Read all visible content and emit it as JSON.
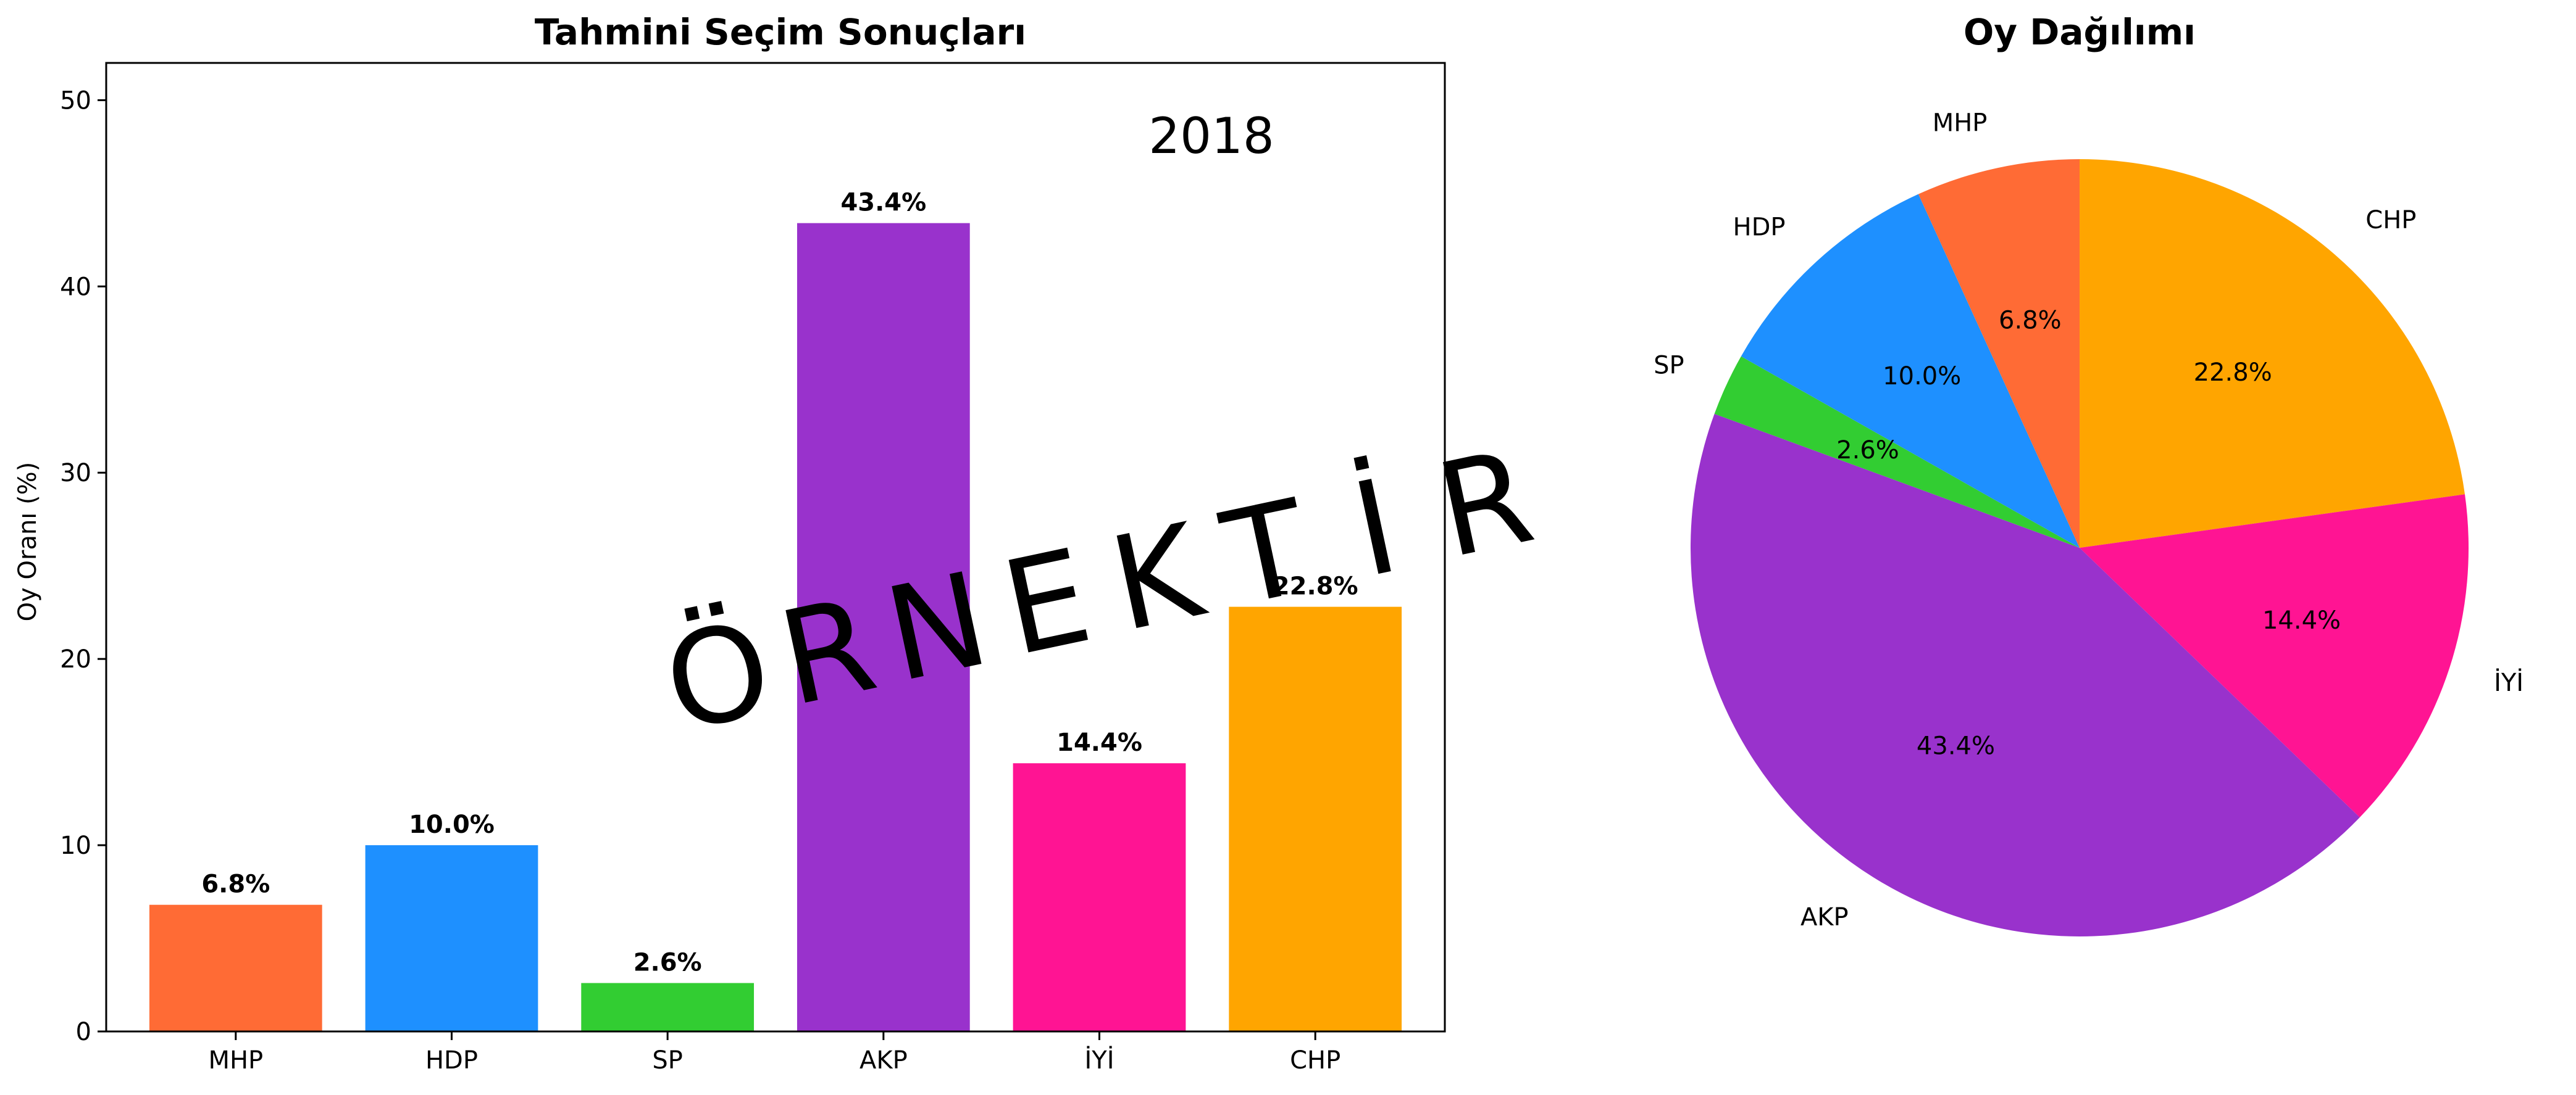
{
  "colors": {
    "MHP": "#FF6B35",
    "HDP": "#1E90FF",
    "SP": "#32CD32",
    "AKP": "#9932CC",
    "IYI": "#FF1493",
    "CHP": "#FFA500"
  },
  "chart_data": [
    {
      "type": "bar",
      "title": "Tahmini Seçim Sonuçları",
      "xlabel": "",
      "ylabel": "Oy Oranı (%)",
      "ylim": [
        0,
        52
      ],
      "yticks": [
        0,
        10,
        20,
        30,
        40,
        50
      ],
      "categories": [
        "MHP",
        "HDP",
        "SP",
        "AKP",
        "İYİ",
        "CHP"
      ],
      "values": [
        6.8,
        10.0,
        2.6,
        43.4,
        14.4,
        22.8
      ],
      "data_labels": [
        "6.8%",
        "10.0%",
        "2.6%",
        "43.4%",
        "14.4%",
        "22.8%"
      ],
      "annotation": "2018",
      "watermark": "ÖRNEKTİR",
      "grid": false
    },
    {
      "type": "pie",
      "title": "Oy Dağılımı",
      "labels": [
        "CHP",
        "İYİ",
        "AKP",
        "SP",
        "HDP",
        "MHP"
      ],
      "values": [
        22.8,
        14.4,
        43.4,
        2.6,
        10.0,
        6.8
      ],
      "pct_labels": [
        "22.8%",
        "14.4%",
        "43.4%",
        "2.6%",
        "10.0%",
        "6.8%"
      ],
      "start": "top",
      "direction": "clockwise"
    }
  ]
}
